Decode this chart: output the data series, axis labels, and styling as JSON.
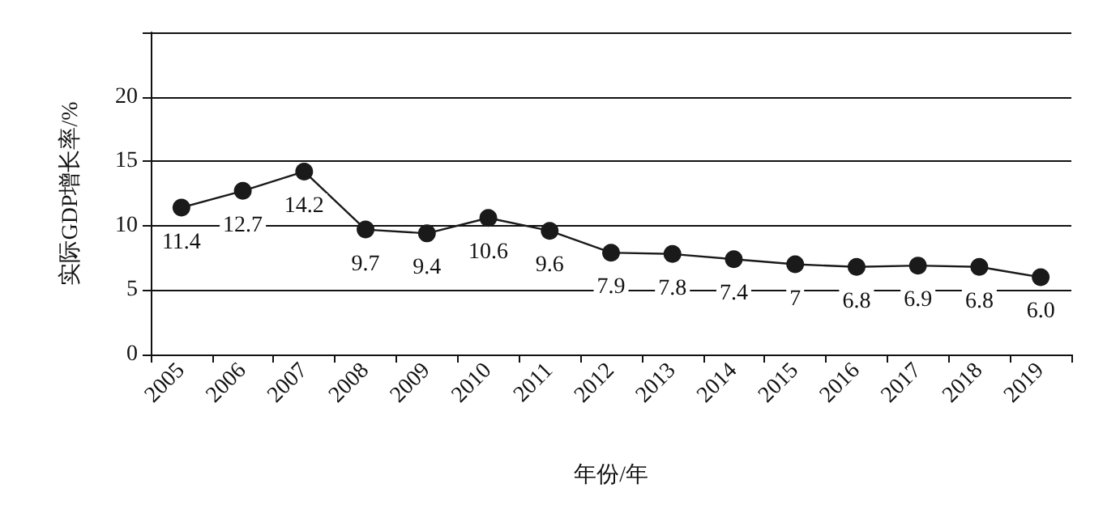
{
  "chart_data": {
    "type": "line",
    "xlabel": "年份/年",
    "ylabel": "实际GDP增长率/%",
    "categories": [
      "2005",
      "2006",
      "2007",
      "2008",
      "2009",
      "2010",
      "2011",
      "2012",
      "2013",
      "2014",
      "2015",
      "2016",
      "2017",
      "2018",
      "2019"
    ],
    "values": [
      11.4,
      12.7,
      14.2,
      9.7,
      9.4,
      10.6,
      9.6,
      7.9,
      7.8,
      7.4,
      7,
      6.8,
      6.9,
      6.8,
      6.0
    ],
    "value_labels": [
      "11.4",
      "12.7",
      "14.2",
      "9.7",
      "9.4",
      "10.6",
      "9.6",
      "7.9",
      "7.8",
      "7.4",
      "7",
      "6.8",
      "6.9",
      "6.8",
      "6.0"
    ],
    "color": "#1a1a1a",
    "marker": "circle",
    "line_style": "solid",
    "grid": "y",
    "ylim": [
      0,
      25
    ],
    "yticks": [
      0,
      5,
      10,
      15,
      20,
      {
        "value": 25,
        "label": null
      }
    ]
  }
}
